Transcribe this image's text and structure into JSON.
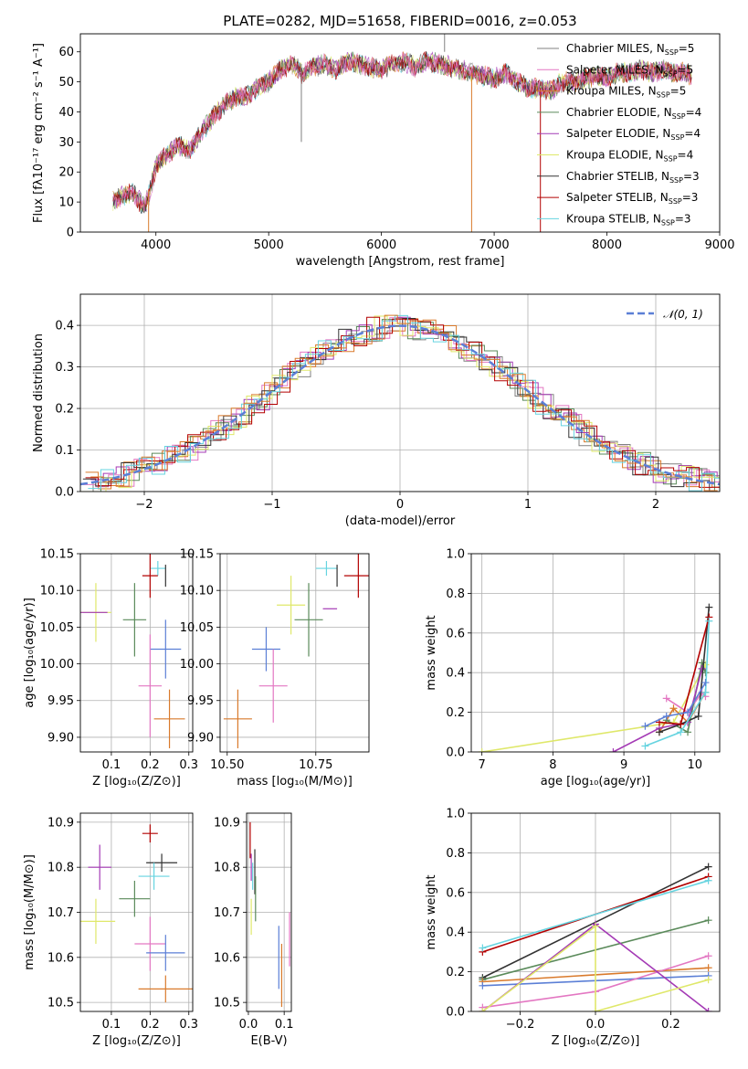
{
  "palette": [
    "#808080",
    "#e377c2",
    "#d97a2b",
    "#5a8a5a",
    "#a43ab5",
    "#dfe86a",
    "#333333",
    "#b30000",
    "#66d4e0"
  ],
  "legend": [
    {
      "label": "Chabrier MILES, N",
      "sub": "SSP",
      "tail": "=5",
      "color": "#808080"
    },
    {
      "label": "Salpeter MILES, N",
      "sub": "SSP",
      "tail": "=5",
      "color": "#e377c2"
    },
    {
      "label": "Kroupa MILES, N",
      "sub": "SSP",
      "tail": "=5",
      "color": "#d97a2b"
    },
    {
      "label": "Chabrier ELODIE, N",
      "sub": "SSP",
      "tail": "=4",
      "color": "#5a8a5a"
    },
    {
      "label": "Salpeter ELODIE, N",
      "sub": "SSP",
      "tail": "=4",
      "color": "#a43ab5"
    },
    {
      "label": "Kroupa ELODIE, N",
      "sub": "SSP",
      "tail": "=4",
      "color": "#dfe86a"
    },
    {
      "label": "Chabrier STELIB, N",
      "sub": "SSP",
      "tail": "=3",
      "color": "#333333"
    },
    {
      "label": "Salpeter STELIB, N",
      "sub": "SSP",
      "tail": "=3",
      "color": "#b30000"
    },
    {
      "label": "Kroupa STELIB, N",
      "sub": "SSP",
      "tail": "=3",
      "color": "#66d4e0"
    }
  ],
  "chart_data": [
    {
      "type": "line",
      "title": "PLATE=0282, MJD=51658, FIBERID=0016, z=0.053",
      "xlabel": "wavelength [Angstrom, rest frame]",
      "ylabel": "Flux [fλ10⁻¹⁷ erg cm⁻² s⁻¹ A⁻¹]",
      "xlim": [
        3330,
        9000
      ],
      "ylim": [
        0,
        66
      ],
      "xticks": [
        4000,
        5000,
        6000,
        7000,
        8000,
        9000
      ],
      "yticks": [
        0,
        10,
        20,
        30,
        40,
        50,
        60
      ],
      "continuum": [
        [
          3600,
          10
        ],
        [
          3700,
          12
        ],
        [
          3800,
          13
        ],
        [
          3900,
          8
        ],
        [
          3950,
          14
        ],
        [
          4000,
          22
        ],
        [
          4100,
          26
        ],
        [
          4200,
          29
        ],
        [
          4300,
          27
        ],
        [
          4400,
          33
        ],
        [
          4500,
          38
        ],
        [
          4600,
          42
        ],
        [
          4700,
          45
        ],
        [
          4800,
          45
        ],
        [
          4900,
          48
        ],
        [
          5000,
          50
        ],
        [
          5100,
          54
        ],
        [
          5200,
          56
        ],
        [
          5300,
          53
        ],
        [
          5400,
          55
        ],
        [
          5500,
          56
        ],
        [
          5600,
          54
        ],
        [
          5700,
          57
        ],
        [
          5800,
          56
        ],
        [
          5900,
          55
        ],
        [
          6000,
          54
        ],
        [
          6100,
          56
        ],
        [
          6200,
          57
        ],
        [
          6300,
          55
        ],
        [
          6400,
          57
        ],
        [
          6500,
          56
        ],
        [
          6600,
          55
        ],
        [
          6700,
          54
        ],
        [
          6800,
          53
        ],
        [
          6900,
          52
        ],
        [
          7000,
          51
        ],
        [
          7100,
          53
        ],
        [
          7200,
          50
        ],
        [
          7300,
          48
        ],
        [
          7400,
          48
        ],
        [
          7500,
          47
        ],
        [
          7600,
          50
        ],
        [
          7700,
          50
        ],
        [
          7800,
          51
        ],
        [
          7900,
          52
        ],
        [
          8000,
          51
        ],
        [
          8100,
          53
        ],
        [
          8200,
          53
        ],
        [
          8300,
          54
        ],
        [
          8400,
          53
        ],
        [
          8500,
          54
        ],
        [
          8600,
          53
        ],
        [
          8700,
          53
        ],
        [
          8750,
          52
        ]
      ]
    },
    {
      "type": "line",
      "xlabel": "(data-model)/error",
      "ylabel": "Normed distribution",
      "xlim": [
        -2.5,
        2.5
      ],
      "ylim": [
        0,
        0.475
      ],
      "xticks": [
        -2,
        -1,
        0,
        1,
        2
      ],
      "xticklabels": [
        "−2",
        "−1",
        "0",
        "1",
        "2"
      ],
      "yticks": [
        0,
        0.1,
        0.2,
        0.3,
        0.4
      ],
      "yticklabels": [
        "0.0",
        "0.1",
        "0.2",
        "0.3",
        "0.4"
      ],
      "reference_label": "𝒩(0, 1)",
      "reference_color": "#5b7fd6"
    },
    {
      "type": "scatter",
      "xlabel": "Z [log₁₀(Z/Z⊙)]",
      "ylabel": "age  [log₁₀(age/yr)]",
      "xlim": [
        0.02,
        0.31
      ],
      "ylim": [
        9.88,
        10.15
      ],
      "xticks": [
        0.1,
        0.2,
        0.3
      ],
      "xticklabels": [
        "0.1",
        "0.2",
        "0.3"
      ],
      "yticks": [
        9.9,
        9.95,
        10.0,
        10.05,
        10.1,
        10.15
      ],
      "yticklabels": [
        "9.90",
        "9.95",
        "10.00",
        "10.05",
        "10.10",
        "10.15"
      ],
      "points": [
        {
          "x": 0.22,
          "y": 10.13,
          "xerr": 0.02,
          "yerr": 0.01,
          "c": 8
        },
        {
          "x": 0.2,
          "y": 10.12,
          "xerr": 0.02,
          "yerr": 0.03,
          "c": 7
        },
        {
          "x": 0.24,
          "y": 10.12,
          "xerr": 0.0,
          "yerr": 0.015,
          "c": 6
        },
        {
          "x": 0.06,
          "y": 10.07,
          "xerr": 0.04,
          "yerr": 0.04,
          "c": 5
        },
        {
          "x": 0.05,
          "y": 10.07,
          "xerr": 0.04,
          "yerr": 0.0,
          "c": 4
        },
        {
          "x": 0.16,
          "y": 10.06,
          "xerr": 0.03,
          "yerr": 0.05,
          "c": 3
        },
        {
          "x": 0.24,
          "y": 10.02,
          "xerr": 0.04,
          "yerr": 0.04,
          "c": 10
        },
        {
          "x": 0.2,
          "y": 9.97,
          "xerr": 0.03,
          "yerr": 0.07,
          "c": 1
        },
        {
          "x": 0.25,
          "y": 9.925,
          "xerr": 0.04,
          "yerr": 0.04,
          "c": 2
        }
      ]
    },
    {
      "type": "scatter",
      "xlabel": "mass [log₁₀(M/M⊙)]",
      "ylabel": "",
      "xlim": [
        10.48,
        10.9
      ],
      "ylim": [
        9.88,
        10.15
      ],
      "xticks": [
        10.5,
        10.75
      ],
      "xticklabels": [
        "10.50",
        "10.75"
      ],
      "yticks": [
        9.9,
        9.95,
        10.0,
        10.05,
        10.1,
        10.15
      ],
      "yticklabels": [
        "9.90",
        "9.95",
        "10.00",
        "10.05",
        "10.10",
        "10.15"
      ],
      "points": [
        {
          "x": 10.78,
          "y": 10.13,
          "xerr": 0.03,
          "yerr": 0.01,
          "c": 8
        },
        {
          "x": 10.87,
          "y": 10.12,
          "xerr": 0.04,
          "yerr": 0.03,
          "c": 7
        },
        {
          "x": 10.81,
          "y": 10.12,
          "xerr": 0.0,
          "yerr": 0.015,
          "c": 6
        },
        {
          "x": 10.68,
          "y": 10.08,
          "xerr": 0.04,
          "yerr": 0.04,
          "c": 5
        },
        {
          "x": 10.79,
          "y": 10.075,
          "xerr": 0.02,
          "yerr": 0.0,
          "c": 4
        },
        {
          "x": 10.73,
          "y": 10.06,
          "xerr": 0.04,
          "yerr": 0.05,
          "c": 3
        },
        {
          "x": 10.61,
          "y": 10.02,
          "xerr": 0.04,
          "yerr": 0.03,
          "c": 10
        },
        {
          "x": 10.63,
          "y": 9.97,
          "xerr": 0.04,
          "yerr": 0.05,
          "c": 1
        },
        {
          "x": 10.53,
          "y": 9.925,
          "xerr": 0.04,
          "yerr": 0.04,
          "c": 2
        }
      ]
    },
    {
      "type": "line",
      "xlabel": "age  [log₁₀(age/yr)]",
      "ylabel": "mass weight",
      "xlim": [
        6.85,
        10.35
      ],
      "ylim": [
        0,
        1.0
      ],
      "xticks": [
        7,
        8,
        9,
        10
      ],
      "xticklabels": [
        "7",
        "8",
        "9",
        "10"
      ],
      "yticks": [
        0,
        0.2,
        0.4,
        0.6,
        0.8,
        1.0
      ],
      "yticklabels": [
        "0.0",
        "0.2",
        "0.4",
        "0.6",
        "0.8",
        "1.0"
      ],
      "series": [
        {
          "c": 5,
          "x": [
            7.0,
            9.7,
            10.15
          ],
          "y": [
            0.0,
            0.15,
            0.44
          ]
        },
        {
          "c": 1,
          "x": [
            9.6,
            9.9,
            10.1,
            10.15
          ],
          "y": [
            0.27,
            0.2,
            0.3,
            0.28
          ]
        },
        {
          "c": 2,
          "x": [
            9.5,
            9.7,
            9.9,
            10.15
          ],
          "y": [
            0.1,
            0.22,
            0.15,
            0.3
          ]
        },
        {
          "c": 3,
          "x": [
            9.6,
            9.9,
            10.1,
            10.15
          ],
          "y": [
            0.16,
            0.1,
            0.45,
            0.4
          ]
        },
        {
          "c": 4,
          "x": [
            8.85,
            9.5,
            9.9,
            10.1
          ],
          "y": [
            0.0,
            0.12,
            0.15,
            0.42
          ]
        },
        {
          "c": 6,
          "x": [
            9.5,
            9.8,
            10.05,
            10.2
          ],
          "y": [
            0.1,
            0.14,
            0.18,
            0.73
          ]
        },
        {
          "c": 7,
          "x": [
            9.5,
            9.8,
            10.2
          ],
          "y": [
            0.15,
            0.14,
            0.68
          ]
        },
        {
          "c": 8,
          "x": [
            9.3,
            9.8,
            10.15,
            10.2
          ],
          "y": [
            0.03,
            0.1,
            0.3,
            0.66
          ]
        },
        {
          "c": 10,
          "x": [
            9.3,
            9.6,
            9.9,
            10.15
          ],
          "y": [
            0.13,
            0.18,
            0.2,
            0.35
          ]
        }
      ]
    },
    {
      "type": "scatter",
      "xlabel": "Z [log₁₀(Z/Z⊙)]",
      "ylabel": "mass [log₁₀(M/M⊙)]",
      "xlim": [
        0.02,
        0.31
      ],
      "ylim": [
        10.48,
        10.92
      ],
      "xticks": [
        0.1,
        0.2,
        0.3
      ],
      "xticklabels": [
        "0.1",
        "0.2",
        "0.3"
      ],
      "yticks": [
        10.5,
        10.6,
        10.7,
        10.8,
        10.9
      ],
      "yticklabels": [
        "10.5",
        "10.6",
        "10.7",
        "10.8",
        "10.9"
      ],
      "points": [
        {
          "x": 0.2,
          "y": 10.875,
          "xerr": 0.02,
          "yerr": 0.02,
          "c": 7
        },
        {
          "x": 0.23,
          "y": 10.81,
          "xerr": 0.04,
          "yerr": 0.02,
          "c": 6
        },
        {
          "x": 0.07,
          "y": 10.8,
          "xerr": 0.03,
          "yerr": 0.05,
          "c": 4
        },
        {
          "x": 0.21,
          "y": 10.78,
          "xerr": 0.04,
          "yerr": 0.03,
          "c": 8
        },
        {
          "x": 0.16,
          "y": 10.73,
          "xerr": 0.04,
          "yerr": 0.04,
          "c": 3
        },
        {
          "x": 0.06,
          "y": 10.68,
          "xerr": 0.05,
          "yerr": 0.05,
          "c": 5
        },
        {
          "x": 0.2,
          "y": 10.63,
          "xerr": 0.04,
          "yerr": 0.06,
          "c": 1
        },
        {
          "x": 0.24,
          "y": 10.61,
          "xerr": 0.05,
          "yerr": 0.04,
          "c": 10
        },
        {
          "x": 0.24,
          "y": 10.53,
          "xerr": 0.07,
          "yerr": 0.03,
          "c": 2
        }
      ]
    },
    {
      "type": "scatter",
      "xlabel": "E(B-V)",
      "ylabel": "",
      "xlim": [
        -0.005,
        0.12
      ],
      "ylim": [
        10.48,
        10.92
      ],
      "xticks": [
        0,
        0.1
      ],
      "xticklabels": [
        "0.0",
        "0.1"
      ],
      "yticks": [
        10.5,
        10.6,
        10.7,
        10.8,
        10.9
      ],
      "yticklabels": [
        "10.5",
        "10.6",
        "10.7",
        "10.8",
        "10.9"
      ],
      "points": [
        {
          "x": 0.005,
          "y": 10.86,
          "yerr": 0.04,
          "c": 7
        },
        {
          "x": 0.008,
          "y": 10.8,
          "yerr": 0.03,
          "c": 4
        },
        {
          "x": 0.012,
          "y": 10.78,
          "yerr": 0.03,
          "c": 8
        },
        {
          "x": 0.018,
          "y": 10.79,
          "yerr": 0.05,
          "c": 6
        },
        {
          "x": 0.02,
          "y": 10.73,
          "yerr": 0.05,
          "c": 3
        },
        {
          "x": 0.008,
          "y": 10.69,
          "yerr": 0.04,
          "c": 5
        },
        {
          "x": 0.085,
          "y": 10.6,
          "yerr": 0.07,
          "c": 10
        },
        {
          "x": 0.093,
          "y": 10.56,
          "yerr": 0.07,
          "c": 2
        },
        {
          "x": 0.115,
          "y": 10.64,
          "yerr": 0.06,
          "c": 1
        }
      ]
    },
    {
      "type": "line",
      "xlabel": "Z [log₁₀(Z/Z⊙)]",
      "ylabel": "mass weight",
      "xlim": [
        -0.33,
        0.33
      ],
      "ylim": [
        0,
        1.0
      ],
      "xticks": [
        -0.2,
        0,
        0.2
      ],
      "xticklabels": [
        "−0.2",
        "0.0",
        "0.2"
      ],
      "yticks": [
        0,
        0.2,
        0.4,
        0.6,
        0.8,
        1.0
      ],
      "yticklabels": [
        "0.0",
        "0.2",
        "0.4",
        "0.6",
        "0.8",
        "1.0"
      ],
      "series": [
        {
          "c": 6,
          "x": [
            -0.3,
            0.3
          ],
          "y": [
            0.17,
            0.73
          ]
        },
        {
          "c": 7,
          "x": [
            -0.3,
            0.3
          ],
          "y": [
            0.3,
            0.68
          ]
        },
        {
          "c": 8,
          "x": [
            -0.3,
            0.3
          ],
          "y": [
            0.32,
            0.66
          ]
        },
        {
          "c": 3,
          "x": [
            -0.3,
            0.3
          ],
          "y": [
            0.16,
            0.46
          ]
        },
        {
          "c": 2,
          "x": [
            -0.3,
            0.3
          ],
          "y": [
            0.15,
            0.22
          ]
        },
        {
          "c": 10,
          "x": [
            -0.3,
            0.3
          ],
          "y": [
            0.13,
            0.18
          ]
        },
        {
          "c": 1,
          "x": [
            -0.3,
            0.0,
            0.3
          ],
          "y": [
            0.02,
            0.1,
            0.28
          ]
        },
        {
          "c": 4,
          "x": [
            -0.3,
            0.0,
            0.3
          ],
          "y": [
            0.0,
            0.44,
            0.0
          ]
        },
        {
          "c": 5,
          "x": [
            -0.3,
            0.0,
            0.0,
            0.3
          ],
          "y": [
            0.0,
            0.43,
            0.0,
            0.16
          ]
        }
      ]
    }
  ]
}
